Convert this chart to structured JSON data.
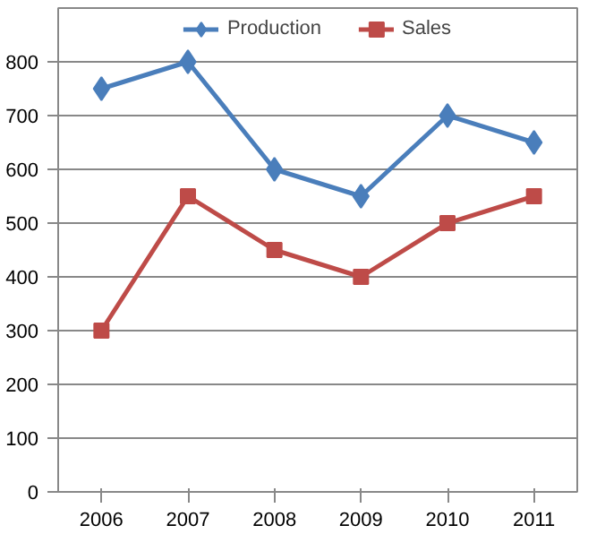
{
  "chart_data": {
    "type": "line",
    "categories": [
      "2006",
      "2007",
      "2008",
      "2009",
      "2010",
      "2011"
    ],
    "series": [
      {
        "name": "Production",
        "color": "#4a7ebb",
        "marker": "diamond",
        "values": [
          750,
          800,
          600,
          550,
          700,
          650
        ]
      },
      {
        "name": "Sales",
        "color": "#be4b48",
        "marker": "square",
        "values": [
          300,
          550,
          450,
          400,
          500,
          550
        ]
      }
    ],
    "ylim": [
      0,
      900
    ],
    "yticks": [
      0,
      100,
      200,
      300,
      400,
      500,
      600,
      700,
      800
    ],
    "grid": "y",
    "legend": "top",
    "line_style": "solid"
  }
}
